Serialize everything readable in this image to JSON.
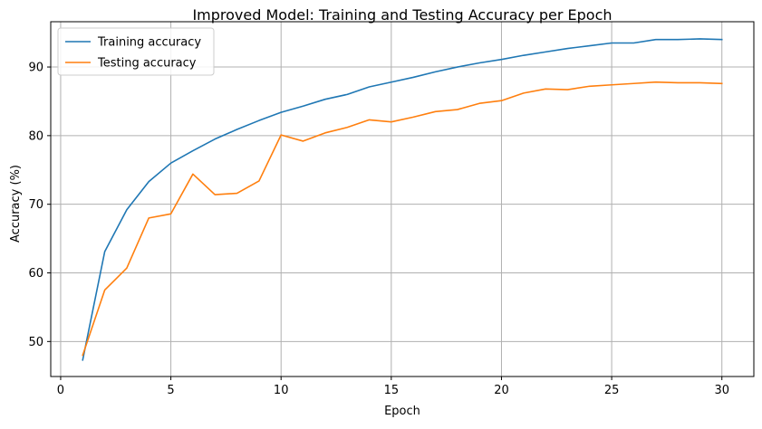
{
  "chart_data": {
    "type": "line",
    "title": "Improved Model: Training and Testing Accuracy per Epoch",
    "xlabel": "Epoch",
    "ylabel": "Accuracy (%)",
    "xlim": [
      -0.45,
      31.45
    ],
    "ylim": [
      44.9,
      96.6
    ],
    "xticks": [
      0,
      5,
      10,
      15,
      20,
      25,
      30
    ],
    "yticks": [
      50,
      60,
      70,
      80,
      90
    ],
    "grid": true,
    "legend_position": "top-left",
    "x": [
      1,
      2,
      3,
      4,
      5,
      6,
      7,
      8,
      9,
      10,
      11,
      12,
      13,
      14,
      15,
      16,
      17,
      18,
      19,
      20,
      21,
      22,
      23,
      24,
      25,
      26,
      27,
      28,
      29,
      30
    ],
    "series": [
      {
        "name": "Training accuracy",
        "color": "#1f77b4",
        "values": [
          47.3,
          63.1,
          69.2,
          73.3,
          76.0,
          77.8,
          79.5,
          80.9,
          82.2,
          83.4,
          84.3,
          85.3,
          86.0,
          87.1,
          87.8,
          88.5,
          89.3,
          90.0,
          90.6,
          91.1,
          91.7,
          92.2,
          92.7,
          93.1,
          93.5,
          93.5,
          94.0,
          94.0,
          94.1,
          94.0
        ]
      },
      {
        "name": "Testing accuracy",
        "color": "#ff7f0e",
        "values": [
          48.0,
          57.5,
          60.7,
          68.0,
          68.6,
          74.4,
          71.4,
          71.6,
          73.4,
          80.1,
          79.2,
          80.4,
          81.2,
          82.3,
          82.0,
          82.7,
          83.5,
          83.8,
          84.7,
          85.1,
          86.2,
          86.8,
          86.7,
          87.2,
          87.4,
          87.6,
          87.8,
          87.7,
          87.7,
          87.6
        ]
      }
    ]
  }
}
